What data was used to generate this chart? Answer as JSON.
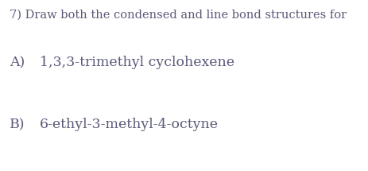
{
  "background_color": "#ffffff",
  "line1": "7) Draw both the condensed and line bond structures for",
  "line2_label": "A)",
  "line2_text": "1,3,3-trimethyl cyclohexene",
  "line3_label": "B)",
  "line3_text": "6-ethyl-3-methyl-4-octyne",
  "text_color": "#5a5a7a",
  "font_size_line1": 10.5,
  "font_size_sub": 12.5,
  "fig_width": 4.63,
  "fig_height": 2.15,
  "dpi": 100
}
